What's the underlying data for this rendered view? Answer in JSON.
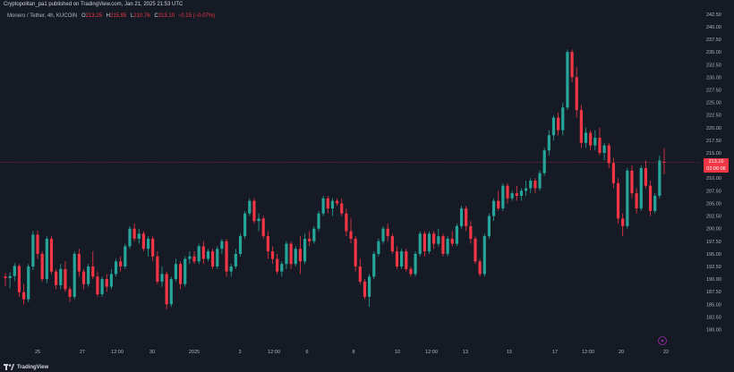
{
  "header": {
    "published": "Cryptopolitan_pa1 published on TradingView.com, Jan 21, 2025 21:53 UTC"
  },
  "legend": {
    "symbol": "Monero / Tether, 4h, KUCOIN",
    "o_label": "O",
    "o_value": "213.25",
    "h_label": "H",
    "h_value": "215.95",
    "l_label": "L",
    "l_value": "210.76",
    "c_label": "C",
    "c_value": "213.10",
    "change": "−0.15 (−0.07%)"
  },
  "price_tag": {
    "price": "213.10",
    "countdown": "02:06:06"
  },
  "footer": {
    "brand": "TradingView"
  },
  "colors": {
    "up": "#26a69a",
    "down": "#f23645",
    "bg": "#161a25",
    "axis_text": "#b2b5be",
    "price_line": "#f23645",
    "marker": "#9c27b0"
  },
  "chart_data": {
    "type": "candlestick",
    "title": "Monero / Tether, 4h, KUCOIN",
    "xlabel": "",
    "ylabel": "",
    "ylim": [
      178.5,
      243
    ],
    "grid": false,
    "current_price": 213.1,
    "y_ticks": [
      "242.50",
      "240.00",
      "237.50",
      "235.00",
      "232.50",
      "230.00",
      "227.50",
      "225.00",
      "222.50",
      "220.00",
      "217.50",
      "215.00",
      "212.50",
      "210.00",
      "207.50",
      "205.00",
      "202.50",
      "200.00",
      "197.50",
      "195.00",
      "192.50",
      "190.00",
      "187.50",
      "185.00",
      "182.50",
      "180.00"
    ],
    "x_ticks": [
      "25",
      "27",
      "12:00",
      "30",
      "2025",
      "3",
      "12:00",
      "6",
      "8",
      "10",
      "12:00",
      "13",
      "15",
      "17",
      "12:00",
      "20",
      "22"
    ],
    "candles_ohlc": [
      [
        190.5,
        191.2,
        188.6,
        190.2
      ],
      [
        190.2,
        191.4,
        188.2,
        190.6
      ],
      [
        190.6,
        193.2,
        189.6,
        192.6
      ],
      [
        192.6,
        193.0,
        186.5,
        187.4
      ],
      [
        187.4,
        189.0,
        185.0,
        186.0
      ],
      [
        186.0,
        193.0,
        185.4,
        192.5
      ],
      [
        192.5,
        199.5,
        191.8,
        198.8
      ],
      [
        198.8,
        199.6,
        194.0,
        195.0
      ],
      [
        195.0,
        195.5,
        189.5,
        190.0
      ],
      [
        190.0,
        198.5,
        189.2,
        198.0
      ],
      [
        198.0,
        198.6,
        191.0,
        191.5
      ],
      [
        191.5,
        192.0,
        188.0,
        188.8
      ],
      [
        188.8,
        193.0,
        188.0,
        192.0
      ],
      [
        192.0,
        193.5,
        187.5,
        188.0
      ],
      [
        188.0,
        188.5,
        185.5,
        186.5
      ],
      [
        186.5,
        195.5,
        186.0,
        195.0
      ],
      [
        195.0,
        196.0,
        190.5,
        191.5
      ],
      [
        191.5,
        192.0,
        188.0,
        189.0
      ],
      [
        189.0,
        193.0,
        188.5,
        192.5
      ],
      [
        192.5,
        195.5,
        190.0,
        190.5
      ],
      [
        190.5,
        191.5,
        186.5,
        187.0
      ],
      [
        187.0,
        190.5,
        186.5,
        190.0
      ],
      [
        190.0,
        191.0,
        187.5,
        188.5
      ],
      [
        188.5,
        192.0,
        188.0,
        191.0
      ],
      [
        191.0,
        194.0,
        190.5,
        193.5
      ],
      [
        193.5,
        194.5,
        191.5,
        192.5
      ],
      [
        192.5,
        197.0,
        192.0,
        196.5
      ],
      [
        196.5,
        200.5,
        196.0,
        200.0
      ],
      [
        200.0,
        201.0,
        197.5,
        198.0
      ],
      [
        198.0,
        200.0,
        197.0,
        199.0
      ],
      [
        199.0,
        199.5,
        195.5,
        196.0
      ],
      [
        196.0,
        198.5,
        194.5,
        198.0
      ],
      [
        198.0,
        198.5,
        193.5,
        194.5
      ],
      [
        194.5,
        195.5,
        189.0,
        189.5
      ],
      [
        189.5,
        192.5,
        188.5,
        191.0
      ],
      [
        191.0,
        191.5,
        184.0,
        185.0
      ],
      [
        185.0,
        190.5,
        184.5,
        190.0
      ],
      [
        190.0,
        194.0,
        189.5,
        193.0
      ],
      [
        193.0,
        193.5,
        188.0,
        189.0
      ],
      [
        189.0,
        194.5,
        188.5,
        194.0
      ],
      [
        194.0,
        195.5,
        193.0,
        194.5
      ],
      [
        194.5,
        195.5,
        193.0,
        193.5
      ],
      [
        193.5,
        197.0,
        193.0,
        196.5
      ],
      [
        196.5,
        197.5,
        193.0,
        194.0
      ],
      [
        194.0,
        196.0,
        193.5,
        195.5
      ],
      [
        195.5,
        196.0,
        192.0,
        192.5
      ],
      [
        192.5,
        196.5,
        192.0,
        196.0
      ],
      [
        196.0,
        198.0,
        195.0,
        197.5
      ],
      [
        197.5,
        198.0,
        190.5,
        191.5
      ],
      [
        191.5,
        193.0,
        190.5,
        192.5
      ],
      [
        192.5,
        196.0,
        192.0,
        195.0
      ],
      [
        195.0,
        199.0,
        194.5,
        198.5
      ],
      [
        198.5,
        203.5,
        198.0,
        203.0
      ],
      [
        203.0,
        206.0,
        202.5,
        205.5
      ],
      [
        205.5,
        206.0,
        201.0,
        201.5
      ],
      [
        201.5,
        203.0,
        199.5,
        202.0
      ],
      [
        202.0,
        202.5,
        198.0,
        198.5
      ],
      [
        198.5,
        199.5,
        194.0,
        195.5
      ],
      [
        195.5,
        196.5,
        193.0,
        194.0
      ],
      [
        194.0,
        195.0,
        191.0,
        191.5
      ],
      [
        191.5,
        193.5,
        190.5,
        193.0
      ],
      [
        193.0,
        197.5,
        192.0,
        197.0
      ],
      [
        197.0,
        197.5,
        192.0,
        193.0
      ],
      [
        193.0,
        196.5,
        192.5,
        196.0
      ],
      [
        196.0,
        198.5,
        191.0,
        193.5
      ],
      [
        193.5,
        199.0,
        193.0,
        198.0
      ],
      [
        198.0,
        199.5,
        196.5,
        197.5
      ],
      [
        197.5,
        200.5,
        197.0,
        200.0
      ],
      [
        200.0,
        203.5,
        199.5,
        203.0
      ],
      [
        203.0,
        206.5,
        202.5,
        206.0
      ],
      [
        206.0,
        206.5,
        203.0,
        204.0
      ],
      [
        204.0,
        206.0,
        202.5,
        205.5
      ],
      [
        205.5,
        206.0,
        204.5,
        205.0
      ],
      [
        205.0,
        206.0,
        202.5,
        203.0
      ],
      [
        203.0,
        204.0,
        198.5,
        199.5
      ],
      [
        199.5,
        202.0,
        197.0,
        198.0
      ],
      [
        198.0,
        198.5,
        191.5,
        192.5
      ],
      [
        192.5,
        194.0,
        189.0,
        189.5
      ],
      [
        189.5,
        190.0,
        186.0,
        186.5
      ],
      [
        186.5,
        191.0,
        184.5,
        190.5
      ],
      [
        190.5,
        195.5,
        190.0,
        195.0
      ],
      [
        195.0,
        198.0,
        194.5,
        197.5
      ],
      [
        197.5,
        200.5,
        197.0,
        200.0
      ],
      [
        200.0,
        201.0,
        197.5,
        198.5
      ],
      [
        198.5,
        199.0,
        195.0,
        195.5
      ],
      [
        195.5,
        196.5,
        192.0,
        192.5
      ],
      [
        192.5,
        196.0,
        192.0,
        195.5
      ],
      [
        195.5,
        196.0,
        191.5,
        192.0
      ],
      [
        192.0,
        192.5,
        190.5,
        191.0
      ],
      [
        191.0,
        195.5,
        190.5,
        195.0
      ],
      [
        195.0,
        199.5,
        194.5,
        199.0
      ],
      [
        199.0,
        199.5,
        194.5,
        195.5
      ],
      [
        195.5,
        199.5,
        195.0,
        199.0
      ],
      [
        199.0,
        199.5,
        196.0,
        197.0
      ],
      [
        197.0,
        200.0,
        196.5,
        198.5
      ],
      [
        198.5,
        199.0,
        194.5,
        195.0
      ],
      [
        195.0,
        198.5,
        194.5,
        198.0
      ],
      [
        198.0,
        199.5,
        196.5,
        197.0
      ],
      [
        197.0,
        201.0,
        196.5,
        200.5
      ],
      [
        200.5,
        204.5,
        200.0,
        204.0
      ],
      [
        204.0,
        204.5,
        199.5,
        200.5
      ],
      [
        200.5,
        201.5,
        197.0,
        198.0
      ],
      [
        198.0,
        198.5,
        193.0,
        193.5
      ],
      [
        193.5,
        194.0,
        190.5,
        191.0
      ],
      [
        191.0,
        199.0,
        190.5,
        198.5
      ],
      [
        198.5,
        203.0,
        198.0,
        202.5
      ],
      [
        202.5,
        206.0,
        201.5,
        205.5
      ],
      [
        205.5,
        207.5,
        203.5,
        204.0
      ],
      [
        204.0,
        209.0,
        203.5,
        208.5
      ],
      [
        208.5,
        209.0,
        205.0,
        206.0
      ],
      [
        206.0,
        207.5,
        205.5,
        207.0
      ],
      [
        207.0,
        208.5,
        205.5,
        206.5
      ],
      [
        206.5,
        208.0,
        205.5,
        207.5
      ],
      [
        207.5,
        209.5,
        206.5,
        208.0
      ],
      [
        208.0,
        210.0,
        207.0,
        209.5
      ],
      [
        209.5,
        210.0,
        207.0,
        208.0
      ],
      [
        208.0,
        211.5,
        207.5,
        211.0
      ],
      [
        211.0,
        216.0,
        210.5,
        215.5
      ],
      [
        215.5,
        219.5,
        214.5,
        218.5
      ],
      [
        218.5,
        222.5,
        217.5,
        222.0
      ],
      [
        222.0,
        223.0,
        218.5,
        219.5
      ],
      [
        219.5,
        225.0,
        218.5,
        224.0
      ],
      [
        224.0,
        235.5,
        223.5,
        235.0
      ],
      [
        235.0,
        235.5,
        229.0,
        230.0
      ],
      [
        230.0,
        232.0,
        222.0,
        223.5
      ],
      [
        223.5,
        224.5,
        216.0,
        217.0
      ],
      [
        217.0,
        220.0,
        216.0,
        219.0
      ],
      [
        219.0,
        219.5,
        215.5,
        216.5
      ],
      [
        216.5,
        219.5,
        215.5,
        218.0
      ],
      [
        218.0,
        220.0,
        214.5,
        215.0
      ],
      [
        215.0,
        217.0,
        213.5,
        216.5
      ],
      [
        216.5,
        217.0,
        212.0,
        213.0
      ],
      [
        213.0,
        214.0,
        208.0,
        209.0
      ],
      [
        209.0,
        210.0,
        201.0,
        202.0
      ],
      [
        202.0,
        203.0,
        198.5,
        200.5
      ],
      [
        200.5,
        212.0,
        200.0,
        211.5
      ],
      [
        211.5,
        212.5,
        206.0,
        207.0
      ],
      [
        207.0,
        208.0,
        203.0,
        204.0
      ],
      [
        204.0,
        212.5,
        203.5,
        212.0
      ],
      [
        212.0,
        213.5,
        208.0,
        208.5
      ],
      [
        208.5,
        209.5,
        202.5,
        203.5
      ],
      [
        203.5,
        207.0,
        203.0,
        206.5
      ],
      [
        206.5,
        214.5,
        206.0,
        213.5
      ],
      [
        213.25,
        215.95,
        210.76,
        213.1
      ]
    ]
  }
}
